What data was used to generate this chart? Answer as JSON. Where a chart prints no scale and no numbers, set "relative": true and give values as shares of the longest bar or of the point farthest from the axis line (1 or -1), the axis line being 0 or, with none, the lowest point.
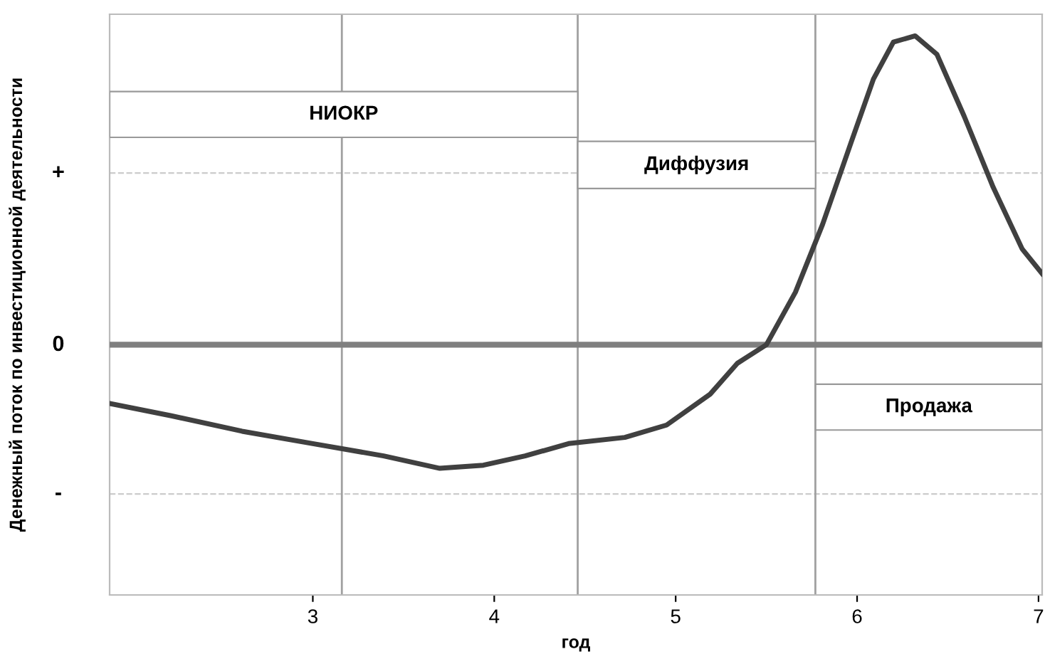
{
  "chart_data": {
    "type": "line",
    "xlabel": "год",
    "ylabel": "Денежный поток по инвестиционной деятельности",
    "relative": true,
    "x": [
      1.88,
      2.22,
      2.61,
      3.0,
      3.39,
      3.7,
      3.94,
      4.17,
      4.41,
      4.72,
      4.95,
      5.19,
      5.34,
      5.5,
      5.66,
      5.81,
      5.97,
      6.09,
      6.2,
      6.32,
      6.44,
      6.59,
      6.75,
      6.91,
      7.02
    ],
    "series": [
      {
        "color": "#404040",
        "values": [
          -0.19,
          -0.23,
          -0.28,
          -0.32,
          -0.36,
          -0.4,
          -0.39,
          -0.36,
          -0.32,
          -0.3,
          -0.26,
          -0.16,
          -0.06,
          0,
          0.17,
          0.39,
          0.66,
          0.86,
          0.98,
          1,
          0.94,
          0.74,
          0.51,
          0.31,
          0.23
        ]
      }
    ],
    "xlim": [
      1.88,
      7.02
    ],
    "xticks": [
      3,
      4,
      5,
      6,
      7
    ],
    "marker": "none",
    "line_style": "solid",
    "ref_lines": [
      {
        "axis": "y",
        "value": 0,
        "color": "#7f7f7f"
      },
      {
        "axis": "y",
        "value": 0.556,
        "color": "#cccccc",
        "line_style": "dashed"
      },
      {
        "axis": "y",
        "value": -0.483,
        "color": "#cccccc",
        "line_style": "dashed"
      },
      {
        "axis": "x",
        "value": 3.16,
        "color": "#a0a0a0"
      },
      {
        "axis": "x",
        "value": 4.46,
        "color": "#a0a0a0"
      },
      {
        "axis": "x",
        "value": 5.77,
        "color": "#a0a0a0"
      }
    ],
    "annotations": [
      "НИОКР",
      "Диффузия",
      "Продажа",
      "+",
      "0",
      "-"
    ]
  }
}
